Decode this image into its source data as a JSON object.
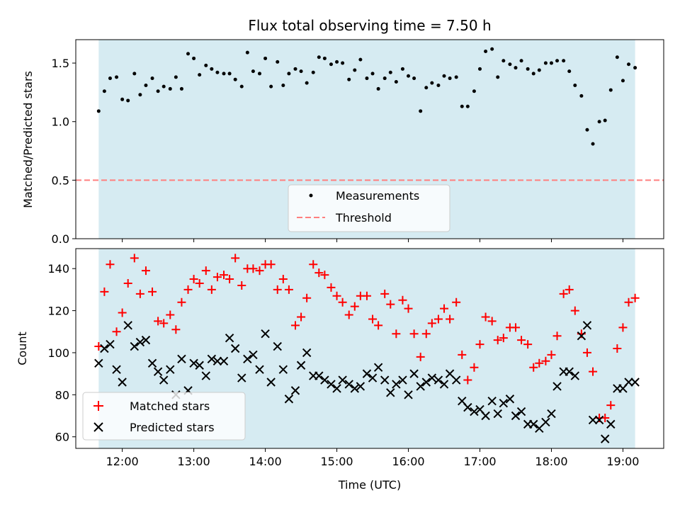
{
  "colors": {
    "band": "#add8e6",
    "threshold": "#ff7f7f",
    "matched": "#ff0000",
    "predicted": "#000000",
    "measurement": "#000000"
  },
  "chart_data": [
    {
      "type": "scatter",
      "title": "Flux total observing time = 7.50 h",
      "xlabel": "",
      "ylabel": "Matched/Predicted stars",
      "xlim": [
        11.35,
        19.57
      ],
      "ylim": [
        0.0,
        1.7
      ],
      "yticks": [
        0.0,
        0.5,
        1.0,
        1.5
      ],
      "ytick_labels": [
        "0.0",
        "0.5",
        "1.0",
        "1.5"
      ],
      "observing_band": [
        11.67,
        19.17
      ],
      "legend_position": "lower-center",
      "series": [
        {
          "name": "Measurements",
          "marker": "dot",
          "x": [
            11.67,
            11.75,
            11.83,
            11.92,
            12.0,
            12.08,
            12.17,
            12.25,
            12.33,
            12.42,
            12.5,
            12.58,
            12.67,
            12.75,
            12.83,
            12.92,
            13.0,
            13.08,
            13.17,
            13.25,
            13.33,
            13.42,
            13.5,
            13.58,
            13.67,
            13.75,
            13.83,
            13.92,
            14.0,
            14.08,
            14.17,
            14.25,
            14.33,
            14.42,
            14.5,
            14.58,
            14.67,
            14.75,
            14.83,
            14.92,
            15.0,
            15.08,
            15.17,
            15.25,
            15.33,
            15.42,
            15.5,
            15.58,
            15.67,
            15.75,
            15.83,
            15.92,
            16.0,
            16.08,
            16.17,
            16.25,
            16.33,
            16.42,
            16.5,
            16.58,
            16.67,
            16.75,
            16.83,
            16.92,
            17.0,
            17.08,
            17.17,
            17.25,
            17.33,
            17.42,
            17.5,
            17.58,
            17.67,
            17.75,
            17.83,
            17.92,
            18.0,
            18.08,
            18.17,
            18.25,
            18.33,
            18.42,
            18.5,
            18.58,
            18.67,
            18.75,
            18.83,
            18.92,
            19.0,
            19.08,
            19.17
          ],
          "y": [
            1.09,
            1.26,
            1.37,
            1.38,
            1.19,
            1.18,
            1.41,
            1.23,
            1.31,
            1.37,
            1.26,
            1.3,
            1.28,
            1.38,
            1.28,
            1.58,
            1.54,
            1.4,
            1.48,
            1.45,
            1.42,
            1.41,
            1.41,
            1.36,
            1.3,
            1.59,
            1.43,
            1.41,
            1.54,
            1.3,
            1.51,
            1.31,
            1.41,
            1.45,
            1.43,
            1.33,
            1.42,
            1.55,
            1.54,
            1.49,
            1.51,
            1.5,
            1.36,
            1.44,
            1.53,
            1.37,
            1.41,
            1.28,
            1.37,
            1.42,
            1.34,
            1.45,
            1.39,
            1.37,
            1.09,
            1.29,
            1.33,
            1.31,
            1.39,
            1.37,
            1.38,
            1.13,
            1.13,
            1.26,
            1.45,
            1.6,
            1.62,
            1.38,
            1.52,
            1.49,
            1.46,
            1.52,
            1.45,
            1.41,
            1.44,
            1.5,
            1.5,
            1.52,
            1.52,
            1.43,
            1.31,
            1.22,
            0.93,
            0.81,
            1.0,
            1.01,
            1.27,
            1.55,
            1.35,
            1.49,
            1.46
          ]
        },
        {
          "name": "Threshold",
          "marker": "dashed-line",
          "value": 0.5
        }
      ]
    },
    {
      "type": "scatter",
      "title": "",
      "xlabel": "Time (UTC)",
      "ylabel": "Count",
      "xlim": [
        11.35,
        19.57
      ],
      "ylim": [
        54.5,
        149.5
      ],
      "yticks": [
        60,
        80,
        100,
        120,
        140
      ],
      "ytick_labels": [
        "60",
        "80",
        "100",
        "120",
        "140"
      ],
      "xticks": [
        12,
        13,
        14,
        15,
        16,
        17,
        18,
        19
      ],
      "xtick_labels": [
        "12:00",
        "13:00",
        "14:00",
        "15:00",
        "16:00",
        "17:00",
        "18:00",
        "19:00"
      ],
      "observing_band": [
        11.67,
        19.17
      ],
      "legend_position": "lower-left",
      "series": [
        {
          "name": "Matched stars",
          "marker": "plus",
          "x": [
            11.67,
            11.75,
            11.83,
            11.92,
            12.0,
            12.08,
            12.17,
            12.25,
            12.33,
            12.42,
            12.5,
            12.58,
            12.67,
            12.75,
            12.83,
            12.92,
            13.0,
            13.08,
            13.17,
            13.25,
            13.33,
            13.42,
            13.5,
            13.58,
            13.67,
            13.75,
            13.83,
            13.92,
            14.0,
            14.08,
            14.17,
            14.25,
            14.33,
            14.42,
            14.5,
            14.58,
            14.67,
            14.75,
            14.83,
            14.92,
            15.0,
            15.08,
            15.17,
            15.25,
            15.33,
            15.42,
            15.5,
            15.58,
            15.67,
            15.75,
            15.83,
            15.92,
            16.0,
            16.08,
            16.17,
            16.25,
            16.33,
            16.42,
            16.5,
            16.58,
            16.67,
            16.75,
            16.83,
            16.92,
            17.0,
            17.08,
            17.17,
            17.25,
            17.33,
            17.42,
            17.5,
            17.58,
            17.67,
            17.75,
            17.83,
            17.92,
            18.0,
            18.08,
            18.17,
            18.25,
            18.33,
            18.42,
            18.5,
            18.58,
            18.67,
            18.75,
            18.83,
            18.92,
            19.0,
            19.08,
            19.17
          ],
          "y": [
            103,
            129,
            142,
            110,
            119,
            133,
            145,
            128,
            139,
            129,
            115,
            114,
            118,
            111,
            124,
            130,
            135,
            133,
            139,
            130,
            136,
            137,
            135,
            145,
            132,
            140,
            140,
            139,
            142,
            142,
            130,
            135,
            130,
            113,
            117,
            126,
            142,
            138,
            137,
            131,
            127,
            124,
            118,
            122,
            127,
            127,
            116,
            113,
            128,
            123,
            109,
            125,
            121,
            109,
            98,
            109,
            114,
            116,
            121,
            116,
            124,
            99,
            87,
            93,
            104,
            117,
            115,
            106,
            107,
            112,
            112,
            106,
            104,
            93,
            95,
            96,
            99,
            108,
            128,
            130,
            120,
            109,
            100,
            91,
            69,
            69,
            75,
            102,
            112,
            124,
            126
          ]
        },
        {
          "name": "Predicted stars",
          "marker": "x",
          "x": [
            11.67,
            11.75,
            11.83,
            11.92,
            12.0,
            12.08,
            12.17,
            12.25,
            12.33,
            12.42,
            12.5,
            12.58,
            12.67,
            12.75,
            12.83,
            12.92,
            13.0,
            13.08,
            13.17,
            13.25,
            13.33,
            13.42,
            13.5,
            13.58,
            13.67,
            13.75,
            13.83,
            13.92,
            14.0,
            14.08,
            14.17,
            14.25,
            14.33,
            14.42,
            14.5,
            14.58,
            14.67,
            14.75,
            14.83,
            14.92,
            15.0,
            15.08,
            15.17,
            15.25,
            15.33,
            15.42,
            15.5,
            15.58,
            15.67,
            15.75,
            15.83,
            15.92,
            16.0,
            16.08,
            16.17,
            16.25,
            16.33,
            16.42,
            16.5,
            16.58,
            16.67,
            16.75,
            16.83,
            16.92,
            17.0,
            17.08,
            17.17,
            17.25,
            17.33,
            17.42,
            17.5,
            17.58,
            17.67,
            17.75,
            17.83,
            17.92,
            18.0,
            18.08,
            18.17,
            18.25,
            18.33,
            18.42,
            18.5,
            18.58,
            18.67,
            18.75,
            18.83,
            18.92,
            19.0,
            19.08,
            19.17
          ],
          "y": [
            95,
            102,
            104,
            92,
            86,
            113,
            103,
            105,
            106,
            95,
            91,
            87,
            92,
            80,
            97,
            82,
            95,
            94,
            89,
            97,
            96,
            96,
            107,
            102,
            88,
            97,
            99,
            92,
            109,
            86,
            103,
            92,
            78,
            82,
            94,
            100,
            89,
            89,
            87,
            85,
            83,
            87,
            85,
            83,
            84,
            90,
            88,
            93,
            87,
            81,
            85,
            87,
            80,
            90,
            84,
            86,
            88,
            87,
            85,
            90,
            87,
            77,
            74,
            72,
            73,
            70,
            77,
            71,
            76,
            78,
            70,
            72,
            66,
            66,
            64,
            67,
            71,
            84,
            91,
            91,
            89,
            108,
            113,
            68,
            68,
            59,
            66,
            83,
            83,
            86,
            86
          ]
        }
      ]
    }
  ]
}
